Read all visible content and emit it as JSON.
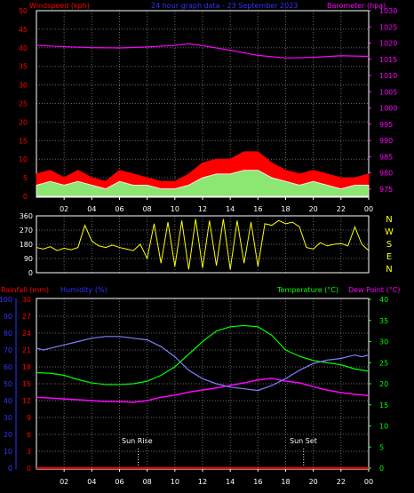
{
  "header": {
    "left_label": "Windspeed (kph)",
    "center_label": "24 hour graph data - 23 September 2023",
    "right_label": "Barometer (hpa)"
  },
  "lower_header": {
    "rain_label": "Rainfall (mm)",
    "hum_label": "Humidity (%)",
    "temp_label": "Temperature (°C)",
    "dew_label": "Dew Point (°C)"
  },
  "annotations": {
    "sunrise": "Sun Rise",
    "sunset": "Sun Set"
  },
  "colors": {
    "wind": "#ff0000",
    "gust": "#ffffff",
    "wind_low": "#7fff7f",
    "baro": "#ff00ff",
    "dir": "#ffff00",
    "rain": "#ff0000",
    "hum": "#7f7fff",
    "temp": "#00ff00",
    "dew": "#ff00ff",
    "axis_red": "#ff0000",
    "axis_magenta": "#ff00ff",
    "axis_blue": "#3333ff",
    "axis_green": "#00ff00",
    "grid": "#666666",
    "dir_label": "#ffff00",
    "label_white": "#ffffff"
  },
  "chart_data": [
    {
      "type": "area",
      "x_ticks": [
        "02",
        "04",
        "06",
        "08",
        "10",
        "12",
        "14",
        "16",
        "18",
        "20",
        "22",
        "00"
      ],
      "y_left_ticks": [
        "0",
        "5",
        "10",
        "15",
        "20",
        "25",
        "30",
        "35",
        "40",
        "45",
        "50"
      ],
      "y_right_ticks": [
        "975",
        "980",
        "985",
        "990",
        "995",
        "1000",
        "1005",
        "1010",
        "1015",
        "1020",
        "1025",
        "1030"
      ],
      "y_left_range": [
        0,
        50
      ],
      "y_right_range": [
        972.5,
        1030
      ],
      "series": [
        {
          "name": "Windspeed (kph)",
          "x_hours": [
            0,
            1,
            2,
            3,
            4,
            5,
            6,
            7,
            8,
            9,
            10,
            11,
            12,
            13,
            14,
            15,
            16,
            17,
            18,
            19,
            20,
            21,
            22,
            23,
            24
          ],
          "values": [
            3,
            4,
            3,
            4,
            3,
            2,
            4,
            3,
            3,
            2,
            2,
            3,
            5,
            6,
            6,
            7,
            7,
            5,
            4,
            3,
            4,
            3,
            2,
            3,
            3
          ]
        },
        {
          "name": "Gust",
          "x_hours": [
            0,
            1,
            2,
            3,
            4,
            5,
            6,
            7,
            8,
            9,
            10,
            11,
            12,
            13,
            14,
            15,
            16,
            17,
            18,
            19,
            20,
            21,
            22,
            23,
            24
          ],
          "values": [
            6,
            7,
            5,
            7,
            5,
            4,
            7,
            6,
            5,
            4,
            4,
            6,
            9,
            10,
            10,
            12,
            12,
            9,
            7,
            6,
            7,
            6,
            5,
            5,
            6
          ]
        },
        {
          "name": "Barometer (hpa)",
          "x_hours": [
            0,
            2,
            4,
            6,
            8,
            10,
            11,
            12,
            14,
            16,
            18,
            20,
            22,
            24
          ],
          "values": [
            1019.3,
            1018.9,
            1018.6,
            1018.5,
            1018.8,
            1019.3,
            1019.8,
            1019.2,
            1017.8,
            1016.2,
            1015.4,
            1015.6,
            1016.1,
            1015.9
          ]
        }
      ]
    },
    {
      "type": "line",
      "x_ticks": [],
      "y_left_ticks": [
        "0",
        "90",
        "180",
        "270",
        "360"
      ],
      "y_right_labels": [
        "N",
        "W",
        "S",
        "E",
        "N"
      ],
      "y_range": [
        0,
        360
      ],
      "series": [
        {
          "name": "Wind Direction",
          "x_hours": [
            0,
            0.5,
            1,
            1.5,
            2,
            2.5,
            3,
            3.5,
            4,
            4.5,
            5,
            5.5,
            6,
            6.5,
            7,
            7.5,
            8,
            8.5,
            9,
            9.5,
            10,
            10.5,
            11,
            11.5,
            12,
            12.5,
            13,
            13.5,
            14,
            14.5,
            15,
            15.5,
            16,
            16.5,
            17,
            17.5,
            18,
            18.5,
            19,
            19.5,
            20,
            20.5,
            21,
            21.5,
            22,
            22.5,
            23,
            23.5,
            24
          ],
          "values": [
            160,
            150,
            165,
            140,
            155,
            145,
            160,
            300,
            200,
            170,
            160,
            175,
            160,
            150,
            140,
            180,
            90,
            310,
            60,
            320,
            40,
            330,
            20,
            340,
            30,
            330,
            45,
            340,
            20,
            330,
            60,
            320,
            40,
            310,
            300,
            330,
            310,
            320,
            290,
            160,
            150,
            190,
            170,
            180,
            185,
            170,
            290,
            180,
            140
          ]
        }
      ]
    },
    {
      "type": "line",
      "x_ticks": [
        "02",
        "04",
        "06",
        "08",
        "10",
        "12",
        "14",
        "16",
        "18",
        "20",
        "22",
        "00"
      ],
      "y_left_humidity_ticks": [
        "0",
        "10",
        "20",
        "30",
        "40",
        "50",
        "60",
        "70",
        "80",
        "90",
        "100"
      ],
      "y_left_rain_ticks": [
        "0",
        "3",
        "6",
        "9",
        "12",
        "15",
        "18",
        "21",
        "24",
        "27",
        "30"
      ],
      "y_right_ticks": [
        "0",
        "5",
        "10",
        "15",
        "20",
        "25",
        "30",
        "35",
        "40"
      ],
      "humidity_range": [
        0,
        100
      ],
      "rain_range": [
        0,
        30
      ],
      "temp_range": [
        0,
        40
      ],
      "series": [
        {
          "name": "Humidity (%)",
          "x_hours": [
            0,
            0.5,
            1,
            1.5,
            2,
            3,
            4,
            5,
            6,
            7,
            8,
            9,
            10,
            11,
            12,
            13,
            14,
            15,
            16,
            17,
            18,
            19,
            20,
            21,
            22,
            22.5,
            23,
            23.5,
            24
          ],
          "values": [
            71,
            70,
            71,
            72,
            73,
            75,
            77,
            78,
            78,
            77,
            76,
            72,
            66,
            58,
            53,
            50,
            48,
            47,
            46,
            49,
            53,
            58,
            62,
            64,
            65,
            66,
            67,
            66,
            67
          ]
        },
        {
          "name": "Temperature (°C)",
          "x_hours": [
            0,
            1,
            2,
            3,
            4,
            5,
            6,
            7,
            8,
            9,
            10,
            11,
            12,
            13,
            14,
            15,
            16,
            17,
            18,
            19,
            20,
            21,
            22,
            23,
            24
          ],
          "values": [
            22.6,
            22.5,
            22,
            21,
            20.2,
            19.8,
            19.8,
            20,
            20.6,
            22,
            24,
            27,
            30,
            32.5,
            33.5,
            33.8,
            33.5,
            31.5,
            28,
            26.5,
            25.5,
            25,
            24.5,
            23.5,
            23
          ]
        },
        {
          "name": "Dew Point (°C)",
          "x_hours": [
            0,
            1,
            2,
            3,
            4,
            5,
            6,
            7,
            8,
            9,
            10,
            11,
            12,
            13,
            14,
            15,
            16,
            17,
            18,
            19,
            20,
            21,
            22,
            23,
            24
          ],
          "values": [
            16.8,
            16.6,
            16.4,
            16.2,
            16.0,
            15.8,
            15.8,
            15.6,
            16.0,
            16.8,
            17.3,
            18.0,
            18.5,
            19.0,
            19.6,
            20.2,
            20.9,
            21.3,
            20.6,
            20.2,
            19.3,
            18.5,
            17.9,
            17.5,
            17.2
          ]
        },
        {
          "name": "Rainfall (mm)",
          "x_hours": [
            0,
            24
          ],
          "values": [
            0,
            0
          ]
        }
      ]
    }
  ]
}
